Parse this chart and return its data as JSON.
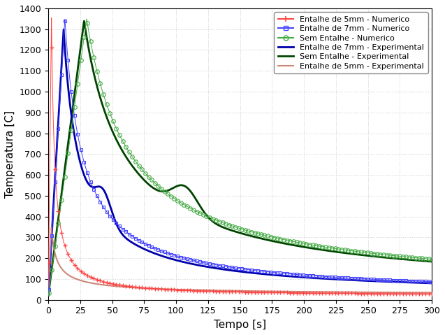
{
  "title": "",
  "xlabel": "Tempo [s]",
  "ylabel": "Temperatura [C]",
  "xlim": [
    0,
    300
  ],
  "ylim": [
    0,
    1400
  ],
  "yticks": [
    0,
    100,
    200,
    300,
    400,
    500,
    600,
    700,
    800,
    900,
    1000,
    1100,
    1200,
    1300,
    1400
  ],
  "xticks": [
    0,
    25,
    50,
    75,
    100,
    125,
    150,
    175,
    200,
    225,
    250,
    275,
    300
  ],
  "color_5mm_num": "#FF4444",
  "color_7mm_num": "#4444FF",
  "color_sem_num": "#44AA44",
  "color_7mm_exp": "#0000AA",
  "color_sem_exp": "#004400",
  "color_5mm_exp": "#CC8877",
  "background_color": "#FFFFFF",
  "grid_color": "#CCCCCC"
}
